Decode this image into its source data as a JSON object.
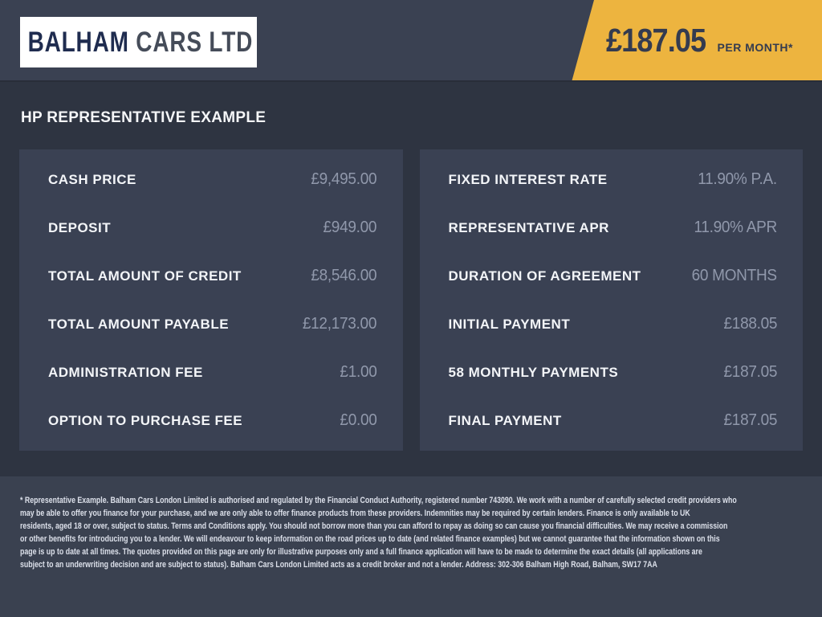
{
  "header": {
    "logo": {
      "primary": "BALHAM",
      "secondary": "CARS LTD"
    },
    "ribbon": {
      "price": "£187.05",
      "suffix": "PER MONTH*"
    }
  },
  "page": {
    "heading": "HP REPRESENTATIVE EXAMPLE"
  },
  "panels": {
    "left": {
      "rows": [
        {
          "label": "CASH PRICE",
          "value": "£9,495.00"
        },
        {
          "label": "DEPOSIT",
          "value": "£949.00"
        },
        {
          "label": "TOTAL AMOUNT OF CREDIT",
          "value": "£8,546.00"
        },
        {
          "label": "TOTAL AMOUNT PAYABLE",
          "value": "£12,173.00"
        },
        {
          "label": "ADMINISTRATION FEE",
          "value": "£1.00"
        },
        {
          "label": "OPTION TO PURCHASE FEE",
          "value": "£0.00"
        }
      ]
    },
    "right": {
      "rows": [
        {
          "label": "FIXED INTEREST RATE",
          "value": "11.90% P.A."
        },
        {
          "label": "REPRESENTATIVE APR",
          "value": "11.90% APR"
        },
        {
          "label": "DURATION OF AGREEMENT",
          "value": "60 MONTHS"
        },
        {
          "label": "INITIAL PAYMENT",
          "value": "£188.05"
        },
        {
          "label": "58 MONTHLY PAYMENTS",
          "value": "£187.05"
        },
        {
          "label": "FINAL PAYMENT",
          "value": "£187.05"
        }
      ]
    }
  },
  "footer": {
    "lines": [
      "* Representative Example. Balham Cars London Limited is authorised and regulated by the Financial Conduct Authority, registered number 743090. We work with a number of carefully selected credit providers who",
      "may be able to offer you finance for your purchase, and we are only able to offer finance products from these providers. Indemnities may be required by certain lenders. Finance is only available to UK",
      "residents, aged 18 or over, subject to status. Terms and Conditions apply. You should not borrow more than you can afford to repay as doing so can cause you financial difficulties. We may receive a commission",
      "or other benefits for introducing you to a lender. We will endeavour to keep information on the road prices up to date (and related finance examples) but we cannot guarantee that the information shown on this",
      "page is up to date at all times. The quotes provided on this page are only for illustrative purposes only and a full finance application will have to be made to determine the exact details (all applications are",
      "subject to an underwriting decision and are subject to status). Balham Cars London Limited acts as a credit broker and not a lender. Address: 302-306 Balham High Road, Balham, SW17 7AA"
    ]
  },
  "colors": {
    "accent_yellow": "#edb43f",
    "header_bg": "#3a4152",
    "body_bg": "#2e3441",
    "panel_bg": "#3a4153",
    "footer_bg": "#3a4150",
    "logo_navy": "#1f2c4f",
    "logo_gray": "#454c59",
    "price_navy": "#343b4f",
    "label_white": "#f3f5f8",
    "value_gray": "#9098ab"
  }
}
